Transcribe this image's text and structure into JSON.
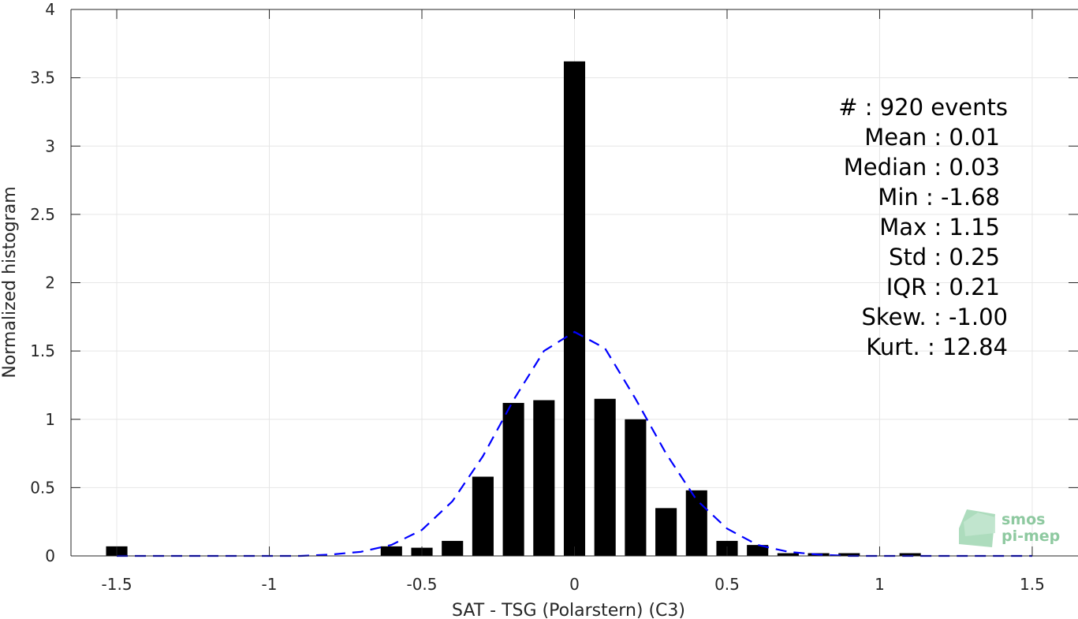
{
  "chart_data": {
    "type": "bar",
    "xlabel": "SAT - TSG (Polarstern) (C3)",
    "ylabel": "Normalized histogram",
    "xlim": [
      -1.65,
      1.65
    ],
    "ylim": [
      0,
      4
    ],
    "x_ticks": [
      -1.5,
      -1,
      -0.5,
      0,
      0.5,
      1,
      1.5
    ],
    "x_tick_labels": [
      "-1.5",
      "-1",
      "-0.5",
      "0",
      "0.5",
      "1",
      "1.5"
    ],
    "y_ticks": [
      0,
      0.5,
      1,
      1.5,
      2,
      2.5,
      3,
      3.5,
      4
    ],
    "y_tick_labels": [
      "0",
      "0.5",
      "1",
      "1.5",
      "2",
      "2.5",
      "3",
      "3.5",
      "4"
    ],
    "grid": true,
    "bar_width": 0.07,
    "bars": [
      {
        "x": -1.5,
        "y": 0.07
      },
      {
        "x": -0.6,
        "y": 0.07
      },
      {
        "x": -0.5,
        "y": 0.06
      },
      {
        "x": -0.4,
        "y": 0.11
      },
      {
        "x": -0.3,
        "y": 0.58
      },
      {
        "x": -0.2,
        "y": 1.12
      },
      {
        "x": -0.1,
        "y": 1.14
      },
      {
        "x": 0.0,
        "y": 3.62
      },
      {
        "x": 0.1,
        "y": 1.15
      },
      {
        "x": 0.2,
        "y": 1.0
      },
      {
        "x": 0.3,
        "y": 0.35
      },
      {
        "x": 0.4,
        "y": 0.48
      },
      {
        "x": 0.5,
        "y": 0.11
      },
      {
        "x": 0.6,
        "y": 0.08
      },
      {
        "x": 0.7,
        "y": 0.02
      },
      {
        "x": 0.8,
        "y": 0.02
      },
      {
        "x": 0.9,
        "y": 0.02
      },
      {
        "x": 1.1,
        "y": 0.02
      }
    ],
    "fit_curve": {
      "style": "dashed",
      "color": "#0000ff",
      "x": [
        -1.5,
        -1.4,
        -1.3,
        -1.2,
        -1.1,
        -1.0,
        -0.9,
        -0.8,
        -0.7,
        -0.6,
        -0.5,
        -0.4,
        -0.3,
        -0.2,
        -0.1,
        0.0,
        0.1,
        0.2,
        0.3,
        0.4,
        0.5,
        0.6,
        0.7,
        0.8,
        0.9,
        1.0,
        1.1,
        1.2,
        1.3,
        1.4,
        1.5
      ],
      "y": [
        0.0,
        0.0,
        0.0,
        0.0,
        0.0,
        0.0,
        0.0,
        0.01,
        0.03,
        0.08,
        0.19,
        0.4,
        0.73,
        1.14,
        1.5,
        1.64,
        1.52,
        1.15,
        0.75,
        0.41,
        0.2,
        0.08,
        0.03,
        0.01,
        0.0,
        0.0,
        0.0,
        0.0,
        0.0,
        0.0,
        0.0
      ]
    },
    "stats": [
      {
        "label": "#  : 920 events"
      },
      {
        "label": "Mean : 0.01"
      },
      {
        "label": "Median : 0.03"
      },
      {
        "label": "Min : -1.68"
      },
      {
        "label": "Max : 1.15"
      },
      {
        "label": "Std : 0.25"
      },
      {
        "label": "IQR : 0.21"
      },
      {
        "label": "Skew. : -1.00"
      },
      {
        "label": "Kurt. : 12.84"
      }
    ]
  },
  "logo": {
    "line1": "smos",
    "line2": "pi-mep"
  }
}
